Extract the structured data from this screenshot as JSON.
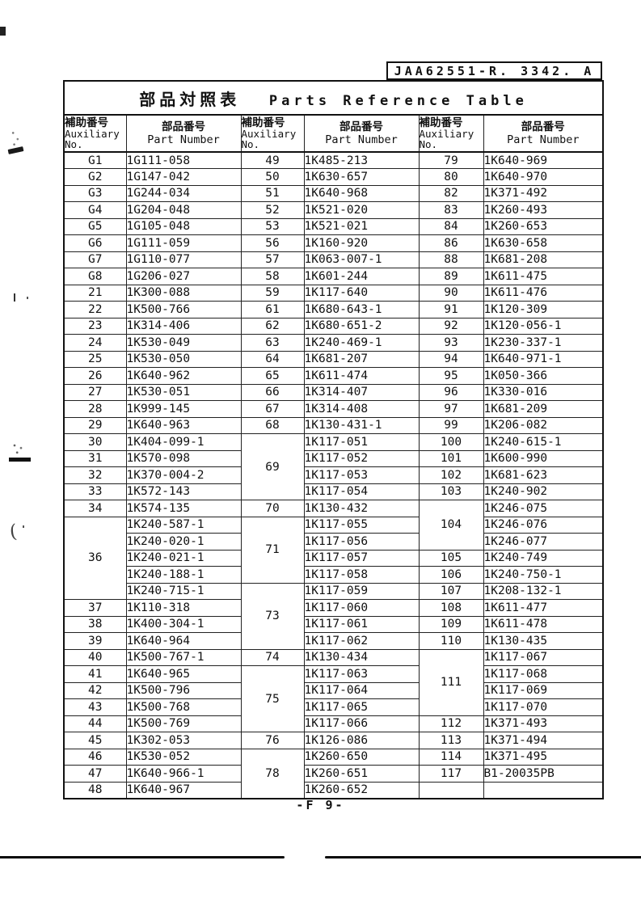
{
  "doc_number": "JAA62551-R. 3342. A",
  "title": {
    "jp": "部品対照表",
    "en": "Parts Reference Table"
  },
  "footer": "-F 9-",
  "column_header": {
    "aux_jp": "補助番号",
    "aux_en_line1": "Auxiliary",
    "aux_en_line2": "No.",
    "part_jp": "部品番号",
    "part_en": "Part Number"
  },
  "pairs": [
    {
      "groups": [
        {
          "no": "G1",
          "parts": [
            "1G111-058"
          ]
        },
        {
          "no": "G2",
          "parts": [
            "1G147-042"
          ]
        },
        {
          "no": "G3",
          "parts": [
            "1G244-034"
          ]
        },
        {
          "no": "G4",
          "parts": [
            "1G204-048"
          ]
        },
        {
          "no": "G5",
          "parts": [
            "1G105-048"
          ]
        },
        {
          "no": "G6",
          "parts": [
            "1G111-059"
          ]
        },
        {
          "no": "G7",
          "parts": [
            "1G110-077"
          ]
        },
        {
          "no": "G8",
          "parts": [
            "1G206-027"
          ]
        },
        {
          "no": "21",
          "parts": [
            "1K300-088"
          ]
        },
        {
          "no": "22",
          "parts": [
            "1K500-766"
          ]
        },
        {
          "no": "23",
          "parts": [
            "1K314-406"
          ]
        },
        {
          "no": "24",
          "parts": [
            "1K530-049"
          ]
        },
        {
          "no": "25",
          "parts": [
            "1K530-050"
          ]
        },
        {
          "no": "26",
          "parts": [
            "1K640-962"
          ]
        },
        {
          "no": "27",
          "parts": [
            "1K530-051"
          ]
        },
        {
          "no": "28",
          "parts": [
            "1K999-145"
          ]
        },
        {
          "no": "29",
          "parts": [
            "1K640-963"
          ]
        },
        {
          "no": "30",
          "parts": [
            "1K404-099-1"
          ]
        },
        {
          "no": "31",
          "parts": [
            "1K570-098"
          ]
        },
        {
          "no": "32",
          "parts": [
            "1K370-004-2"
          ]
        },
        {
          "no": "33",
          "parts": [
            "1K572-143"
          ]
        },
        {
          "no": "34",
          "parts": [
            "1K574-135"
          ]
        },
        {
          "no": "36",
          "parts": [
            "1K240-587-1",
            "1K240-020-1",
            "1K240-021-1",
            "1K240-188-1",
            "1K240-715-1"
          ]
        },
        {
          "no": "37",
          "parts": [
            "1K110-318"
          ]
        },
        {
          "no": "38",
          "parts": [
            "1K400-304-1"
          ]
        },
        {
          "no": "39",
          "parts": [
            "1K640-964"
          ]
        },
        {
          "no": "40",
          "parts": [
            "1K500-767-1"
          ]
        },
        {
          "no": "41",
          "parts": [
            "1K640-965"
          ]
        },
        {
          "no": "42",
          "parts": [
            "1K500-796"
          ]
        },
        {
          "no": "43",
          "parts": [
            "1K500-768"
          ]
        },
        {
          "no": "44",
          "parts": [
            "1K500-769"
          ]
        },
        {
          "no": "45",
          "parts": [
            "1K302-053"
          ]
        },
        {
          "no": "46",
          "parts": [
            "1K530-052"
          ]
        },
        {
          "no": "47",
          "parts": [
            "1K640-966-1"
          ]
        },
        {
          "no": "48",
          "parts": [
            "1K640-967"
          ]
        }
      ]
    },
    {
      "groups": [
        {
          "no": "49",
          "parts": [
            "1K485-213"
          ]
        },
        {
          "no": "50",
          "parts": [
            "1K630-657"
          ]
        },
        {
          "no": "51",
          "parts": [
            "1K640-968"
          ]
        },
        {
          "no": "52",
          "parts": [
            "1K521-020"
          ]
        },
        {
          "no": "53",
          "parts": [
            "1K521-021"
          ]
        },
        {
          "no": "56",
          "parts": [
            "1K160-920"
          ]
        },
        {
          "no": "57",
          "parts": [
            "1K063-007-1"
          ]
        },
        {
          "no": "58",
          "parts": [
            "1K601-244"
          ]
        },
        {
          "no": "59",
          "parts": [
            "1K117-640"
          ]
        },
        {
          "no": "61",
          "parts": [
            "1K680-643-1"
          ]
        },
        {
          "no": "62",
          "parts": [
            "1K680-651-2"
          ]
        },
        {
          "no": "63",
          "parts": [
            "1K240-469-1"
          ]
        },
        {
          "no": "64",
          "parts": [
            "1K681-207"
          ]
        },
        {
          "no": "65",
          "parts": [
            "1K611-474"
          ]
        },
        {
          "no": "66",
          "parts": [
            "1K314-407"
          ]
        },
        {
          "no": "67",
          "parts": [
            "1K314-408"
          ]
        },
        {
          "no": "68",
          "parts": [
            "1K130-431-1"
          ]
        },
        {
          "no": "69",
          "parts": [
            "1K117-051",
            "1K117-052",
            "1K117-053",
            "1K117-054"
          ]
        },
        {
          "no": "70",
          "parts": [
            "1K130-432"
          ]
        },
        {
          "no": "71",
          "parts": [
            "1K117-055",
            "1K117-056",
            "1K117-057",
            "1K117-058"
          ]
        },
        {
          "no": "73",
          "parts": [
            "1K117-059",
            "1K117-060",
            "1K117-061",
            "1K117-062"
          ]
        },
        {
          "no": "74",
          "parts": [
            "1K130-434"
          ]
        },
        {
          "no": "75",
          "parts": [
            "1K117-063",
            "1K117-064",
            "1K117-065",
            "1K117-066"
          ]
        },
        {
          "no": "76",
          "parts": [
            "1K126-086"
          ]
        },
        {
          "no": "78",
          "parts": [
            "1K260-650",
            "1K260-651",
            "1K260-652"
          ]
        }
      ]
    },
    {
      "groups": [
        {
          "no": "79",
          "parts": [
            "1K640-969"
          ]
        },
        {
          "no": "80",
          "parts": [
            "1K640-970"
          ]
        },
        {
          "no": "82",
          "parts": [
            "1K371-492"
          ]
        },
        {
          "no": "83",
          "parts": [
            "1K260-493"
          ]
        },
        {
          "no": "84",
          "parts": [
            "1K260-653"
          ]
        },
        {
          "no": "86",
          "parts": [
            "1K630-658"
          ]
        },
        {
          "no": "88",
          "parts": [
            "1K681-208"
          ]
        },
        {
          "no": "89",
          "parts": [
            "1K611-475"
          ]
        },
        {
          "no": "90",
          "parts": [
            "1K611-476"
          ]
        },
        {
          "no": "91",
          "parts": [
            "1K120-309"
          ]
        },
        {
          "no": "92",
          "parts": [
            "1K120-056-1"
          ]
        },
        {
          "no": "93",
          "parts": [
            "1K230-337-1"
          ]
        },
        {
          "no": "94",
          "parts": [
            "1K640-971-1"
          ]
        },
        {
          "no": "95",
          "parts": [
            "1K050-366"
          ]
        },
        {
          "no": "96",
          "parts": [
            "1K330-016"
          ]
        },
        {
          "no": "97",
          "parts": [
            "1K681-209"
          ]
        },
        {
          "no": "99",
          "parts": [
            "1K206-082"
          ]
        },
        {
          "no": "100",
          "parts": [
            "1K240-615-1"
          ]
        },
        {
          "no": "101",
          "parts": [
            "1K600-990"
          ]
        },
        {
          "no": "102",
          "parts": [
            "1K681-623"
          ]
        },
        {
          "no": "103",
          "parts": [
            "1K240-902"
          ]
        },
        {
          "no": "104",
          "parts": [
            "1K246-075",
            "1K246-076",
            "1K246-077"
          ]
        },
        {
          "no": "105",
          "parts": [
            "1K240-749"
          ]
        },
        {
          "no": "106",
          "parts": [
            "1K240-750-1"
          ]
        },
        {
          "no": "107",
          "parts": [
            "1K208-132-1"
          ]
        },
        {
          "no": "108",
          "parts": [
            "1K611-477"
          ]
        },
        {
          "no": "109",
          "parts": [
            "1K611-478"
          ]
        },
        {
          "no": "110",
          "parts": [
            "1K130-435"
          ]
        },
        {
          "no": "111",
          "parts": [
            "1K117-067",
            "1K117-068",
            "1K117-069",
            "1K117-070"
          ]
        },
        {
          "no": "112",
          "parts": [
            "1K371-493"
          ]
        },
        {
          "no": "113",
          "parts": [
            "1K371-494"
          ]
        },
        {
          "no": "114",
          "parts": [
            "1K371-495"
          ]
        },
        {
          "no": "117",
          "parts": [
            "B1-20035PB"
          ]
        },
        {
          "no": "",
          "parts": [
            ""
          ]
        }
      ]
    }
  ]
}
